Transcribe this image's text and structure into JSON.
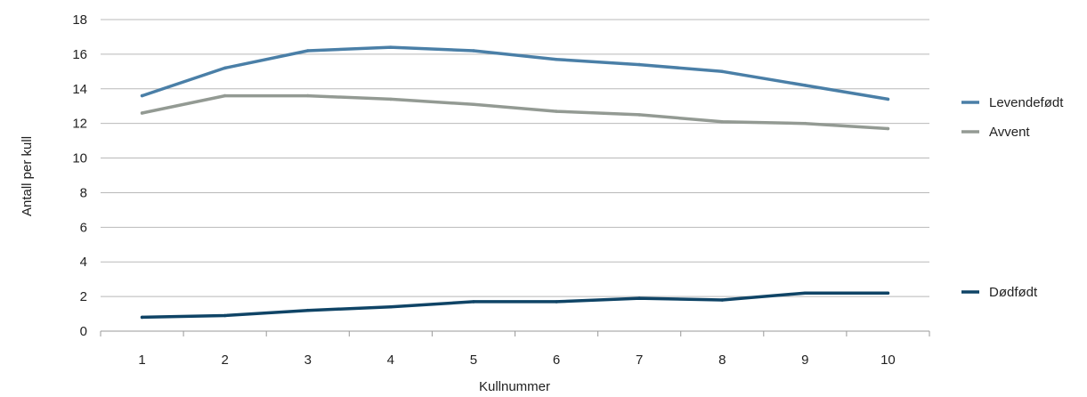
{
  "chart_data": {
    "type": "line",
    "title": "",
    "xlabel": "Kullnummer",
    "ylabel": "Antall per kull",
    "categories": [
      "1",
      "2",
      "3",
      "4",
      "5",
      "6",
      "7",
      "8",
      "9",
      "10"
    ],
    "ylim": [
      0,
      18
    ],
    "yticks": [
      0,
      2,
      4,
      6,
      8,
      10,
      12,
      14,
      16,
      18
    ],
    "grid": true,
    "legend_position": "right",
    "series": [
      {
        "name": "Levendefødt",
        "color": "#4a7fa7",
        "values": [
          13.6,
          15.2,
          16.2,
          16.4,
          16.2,
          15.7,
          15.4,
          15.0,
          14.2,
          13.4
        ]
      },
      {
        "name": "Avvent",
        "color": "#939a93",
        "values": [
          12.6,
          13.6,
          13.6,
          13.4,
          13.1,
          12.7,
          12.5,
          12.1,
          12.0,
          11.7
        ]
      },
      {
        "name": "Dødfødt",
        "color": "#0f4466",
        "values": [
          0.8,
          0.9,
          1.2,
          1.4,
          1.7,
          1.7,
          1.9,
          1.8,
          2.2,
          2.2
        ]
      }
    ]
  }
}
